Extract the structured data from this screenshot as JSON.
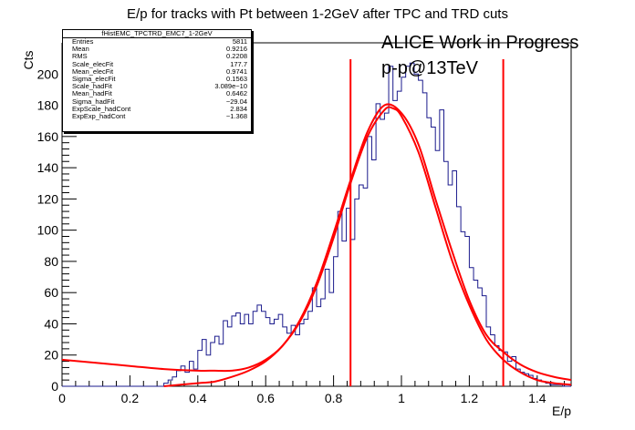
{
  "chart_data": {
    "type": "histogram",
    "title": "E/p for tracks with Pt between 1-2GeV after TPC and TRD cuts",
    "xlabel": "E/p",
    "ylabel": "Cts",
    "xlim": [
      0,
      1.5
    ],
    "ylim": [
      0,
      220
    ],
    "x_ticks": [
      "0",
      "0.2",
      "0.4",
      "0.6",
      "0.8",
      "1",
      "1.2",
      "1.4"
    ],
    "y_ticks": [
      "0",
      "20",
      "40",
      "60",
      "80",
      "100",
      "120",
      "140",
      "160",
      "180",
      "200"
    ],
    "histogram": {
      "name": "fHistEMC_TPCTRD_EMC7_1-2GeV",
      "color": "#1a1a8c",
      "bin_width": 0.0125,
      "x_start": 0.0,
      "counts": [
        0,
        0,
        0,
        0,
        0,
        0,
        0,
        0,
        0,
        0,
        0,
        0,
        0,
        0,
        0,
        0,
        0,
        0,
        0,
        0,
        0,
        0,
        0,
        0,
        2,
        4,
        6,
        10,
        13,
        9,
        16,
        11,
        23,
        30,
        20,
        28,
        32,
        27,
        42,
        38,
        45,
        47,
        40,
        46,
        40,
        48,
        52,
        48,
        44,
        40,
        43,
        46,
        38,
        34,
        39,
        33,
        40,
        43,
        48,
        63,
        51,
        56,
        75,
        60,
        83,
        112,
        93,
        114,
        94,
        120,
        129,
        127,
        160,
        145,
        181,
        171,
        175,
        205,
        183,
        189,
        198,
        205,
        207,
        200,
        196,
        188,
        172,
        166,
        151,
        177,
        144,
        129,
        138,
        115,
        99,
        96,
        76,
        68,
        63,
        58,
        38,
        33,
        26,
        23,
        22,
        16,
        19,
        11,
        9,
        8,
        7,
        5,
        4,
        3,
        2,
        1,
        1,
        1,
        0,
        0
      ]
    },
    "fits": [
      {
        "name": "total fit",
        "color": "#ff0000",
        "x": [
          0,
          0.1,
          0.2,
          0.3,
          0.4,
          0.45,
          0.5,
          0.55,
          0.6,
          0.65,
          0.7,
          0.75,
          0.8,
          0.85,
          0.9,
          0.95,
          1.0,
          1.05,
          1.1,
          1.15,
          1.2,
          1.25,
          1.3,
          1.35,
          1.4,
          1.45,
          1.5
        ],
        "y": [
          17,
          15,
          13,
          11,
          10,
          10,
          10,
          12,
          17,
          26,
          42,
          66,
          98,
          132,
          163,
          180,
          175,
          155,
          120,
          86,
          55,
          33,
          22,
          14,
          9,
          6,
          4
        ]
      },
      {
        "name": "electron fit",
        "color": "#ff0000",
        "x": [
          0.3,
          0.4,
          0.45,
          0.5,
          0.55,
          0.6,
          0.65,
          0.7,
          0.75,
          0.8,
          0.85,
          0.9,
          0.95,
          0.975,
          1.0,
          1.05,
          1.1,
          1.15,
          1.2,
          1.25,
          1.3,
          1.35,
          1.4,
          1.45,
          1.5
        ],
        "y": [
          0,
          2,
          3,
          6,
          10,
          16,
          26,
          41,
          64,
          95,
          130,
          160,
          177,
          178,
          173,
          150,
          115,
          80,
          52,
          30,
          17,
          9,
          4,
          2,
          1
        ]
      }
    ],
    "cut_lines": {
      "color": "#ff0000",
      "x": [
        0.85,
        1.3
      ]
    },
    "stats_box": {
      "title": "fHistEMC_TPCTRD_EMC7_1-2GeV",
      "rows": [
        {
          "label": "Entries",
          "value": "5811"
        },
        {
          "label": "Mean",
          "value": "0.9216"
        },
        {
          "label": "RMS",
          "value": "0.2208"
        },
        {
          "label": "Scale_elecFit",
          "value": "177.7"
        },
        {
          "label": "Mean_elecFit",
          "value": "0.9741"
        },
        {
          "label": "Sigma_elecFit",
          "value": "0.1563"
        },
        {
          "label": "Scale_hadFit",
          "value": "3.089e−10"
        },
        {
          "label": "Mean_hadFit",
          "value": "0.6462"
        },
        {
          "label": "Sigma_hadFit",
          "value": "−29.04"
        },
        {
          "label": "ExpScale_hadCont",
          "value": "2.834"
        },
        {
          "label": "ExpExp_hadCont",
          "value": "−1.368"
        }
      ]
    },
    "annotations": [
      "ALICE Work in Progress",
      "p-p@13TeV"
    ]
  }
}
